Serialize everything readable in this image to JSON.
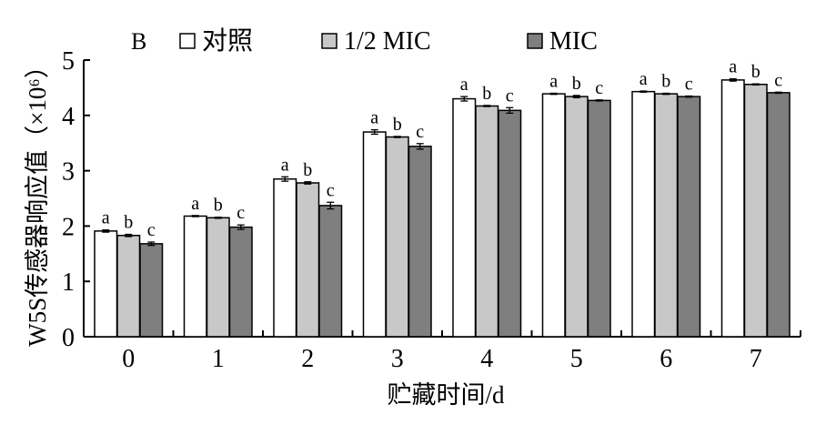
{
  "chart_data": {
    "type": "bar",
    "panel_label": "B",
    "xlabel": "贮藏时间/d",
    "ylabel": "W5S传感器响应值（×10⁶）",
    "ylim": [
      0,
      5
    ],
    "yticks": [
      "0",
      "1",
      "2",
      "3",
      "4",
      "5"
    ],
    "categories": [
      "0",
      "1",
      "2",
      "3",
      "4",
      "5",
      "6",
      "7"
    ],
    "series": [
      {
        "name": "对照",
        "color": "#ffffff",
        "values": [
          1.91,
          2.18,
          2.85,
          3.7,
          4.3,
          4.39,
          4.43,
          4.64
        ],
        "errors": [
          0.02,
          0.01,
          0.04,
          0.04,
          0.04,
          0.01,
          0.01,
          0.02
        ],
        "labels": [
          "a",
          "a",
          "a",
          "a",
          "a",
          "a",
          "a",
          "a"
        ]
      },
      {
        "name": "1/2 MIC",
        "color": "#c8c8c8",
        "values": [
          1.83,
          2.15,
          2.78,
          3.61,
          4.17,
          4.34,
          4.39,
          4.56
        ],
        "errors": [
          0.02,
          0.01,
          0.02,
          0.01,
          0.01,
          0.02,
          0.01,
          0.01
        ],
        "labels": [
          "b",
          "b",
          "b",
          "b",
          "b",
          "b",
          "b",
          "b"
        ]
      },
      {
        "name": "MIC",
        "color": "#7f7f7f",
        "values": [
          1.68,
          1.98,
          2.37,
          3.44,
          4.09,
          4.27,
          4.34,
          4.41
        ],
        "errors": [
          0.03,
          0.04,
          0.06,
          0.05,
          0.05,
          0.01,
          0.01,
          0.01
        ],
        "labels": [
          "c",
          "c",
          "c",
          "c",
          "c",
          "c",
          "c",
          "c"
        ]
      }
    ],
    "legend_position": "top"
  }
}
